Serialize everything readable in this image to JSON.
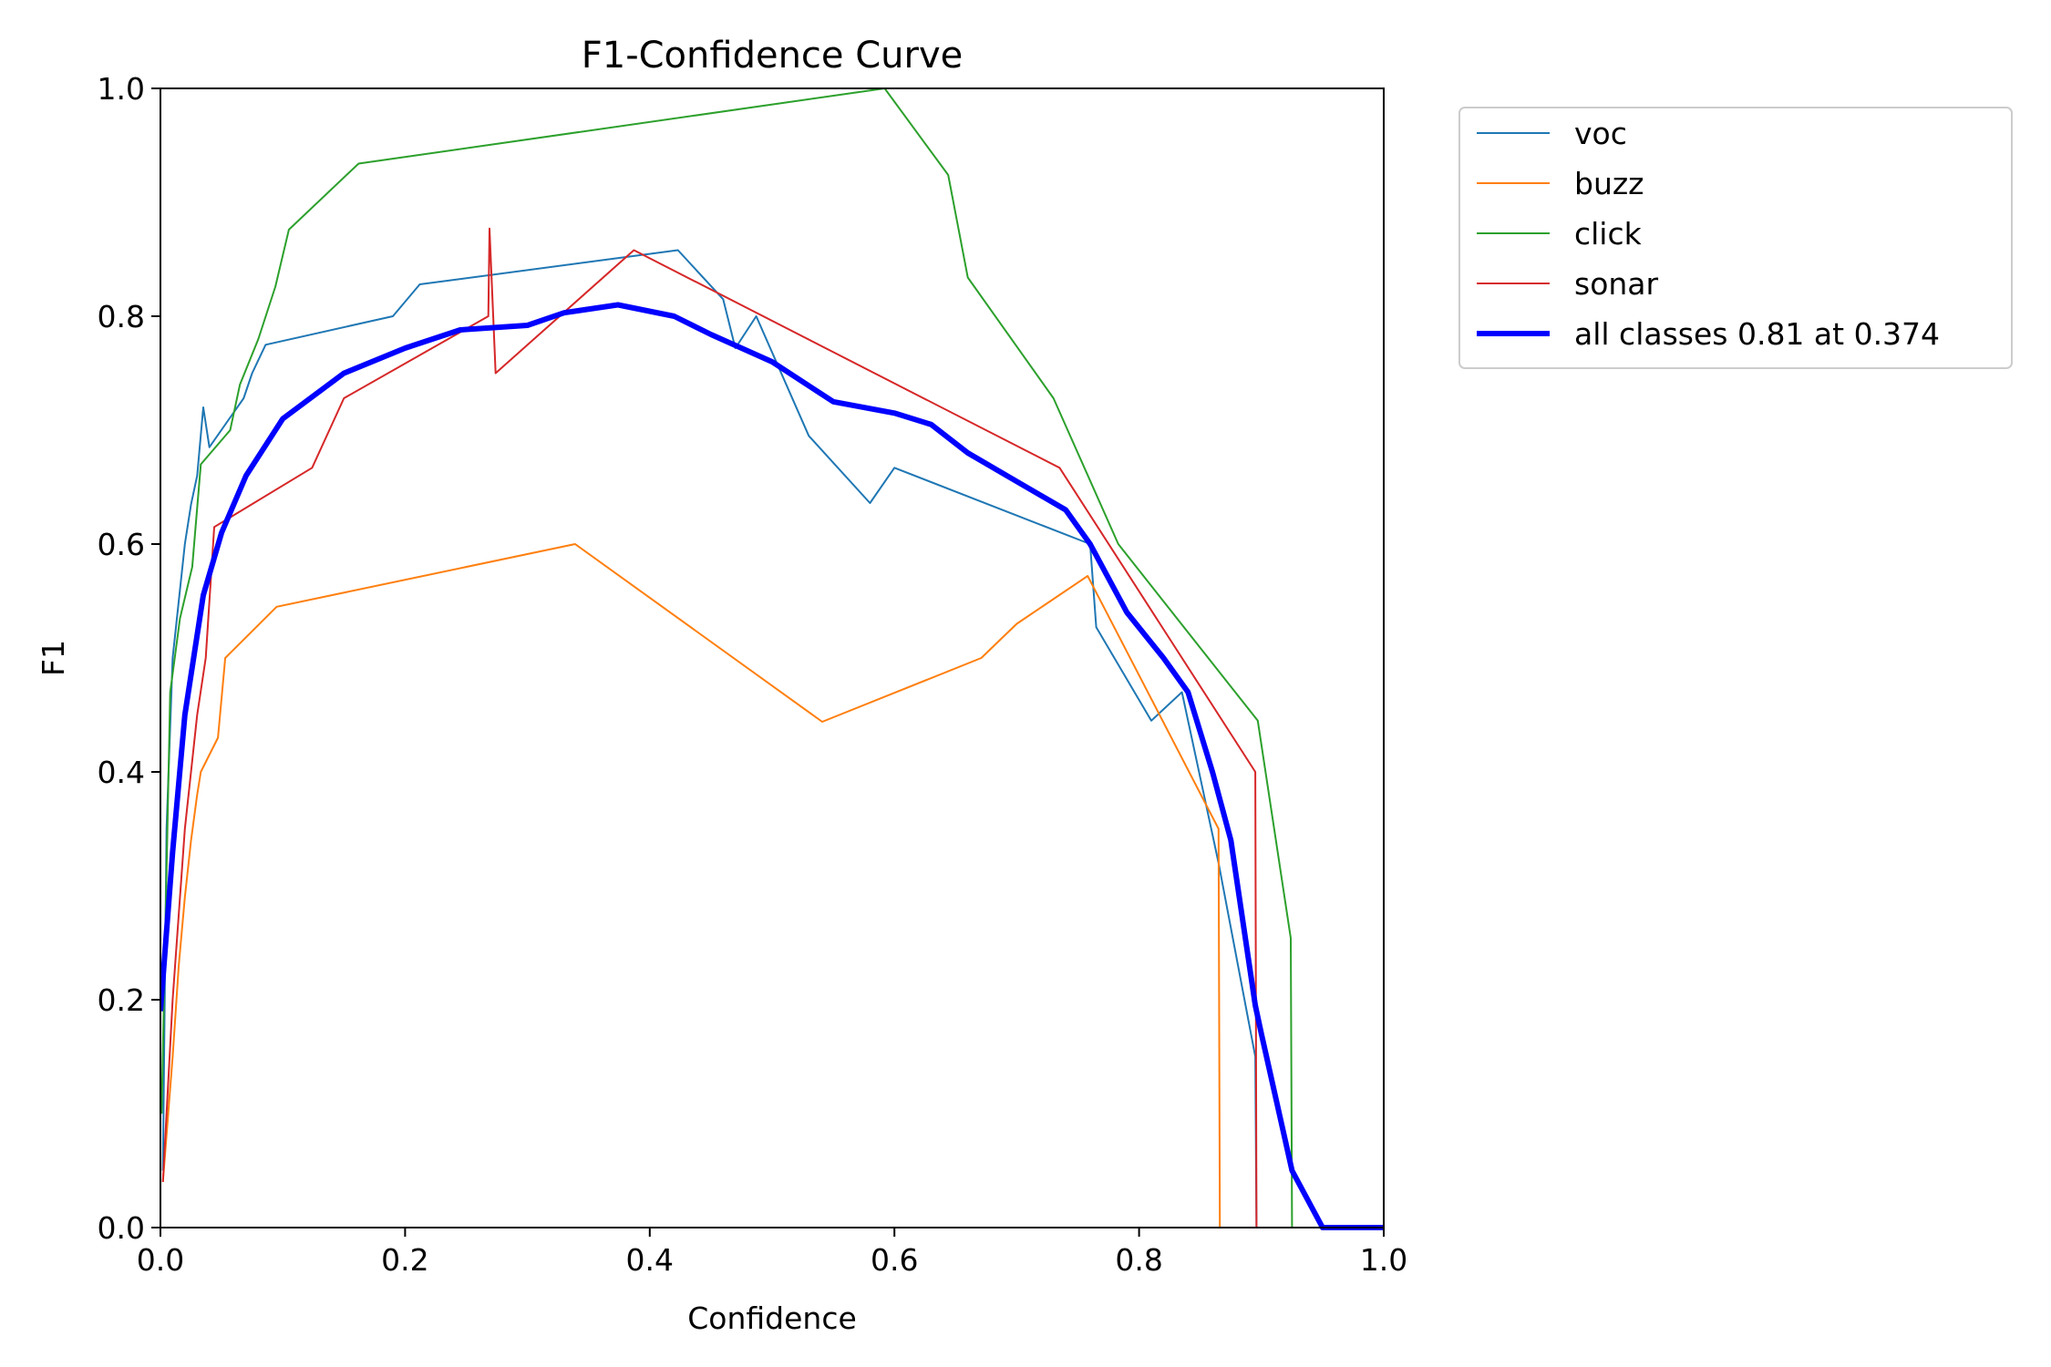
{
  "chart_data": {
    "type": "line",
    "title": "F1-Confidence Curve",
    "xlabel": "Confidence",
    "ylabel": "F1",
    "xlim": [
      0,
      1
    ],
    "ylim": [
      0,
      1
    ],
    "grid": false,
    "legend_position": "outside-top-right",
    "xticks": [
      "0.0",
      "0.2",
      "0.4",
      "0.6",
      "0.8",
      "1.0"
    ],
    "yticks": [
      "0.0",
      "0.2",
      "0.4",
      "0.6",
      "0.8",
      "1.0"
    ],
    "series": [
      {
        "name": "voc",
        "color": "#1f77b4",
        "width": 2,
        "points": [
          [
            0.002,
            0.05
          ],
          [
            0.005,
            0.35
          ],
          [
            0.01,
            0.5
          ],
          [
            0.015,
            0.55
          ],
          [
            0.02,
            0.6
          ],
          [
            0.025,
            0.635
          ],
          [
            0.03,
            0.66
          ],
          [
            0.035,
            0.72
          ],
          [
            0.04,
            0.685
          ],
          [
            0.068,
            0.728
          ],
          [
            0.075,
            0.75
          ],
          [
            0.086,
            0.775
          ],
          [
            0.19,
            0.8
          ],
          [
            0.212,
            0.828
          ],
          [
            0.423,
            0.858
          ],
          [
            0.46,
            0.815
          ],
          [
            0.47,
            0.772
          ],
          [
            0.487,
            0.8
          ],
          [
            0.53,
            0.695
          ],
          [
            0.58,
            0.636
          ],
          [
            0.6,
            0.667
          ],
          [
            0.76,
            0.6
          ],
          [
            0.765,
            0.527
          ],
          [
            0.81,
            0.445
          ],
          [
            0.835,
            0.47
          ],
          [
            0.865,
            0.32
          ],
          [
            0.895,
            0.15
          ],
          [
            0.896,
            0.0
          ],
          [
            1.0,
            0.0
          ]
        ]
      },
      {
        "name": "buzz",
        "color": "#ff7f0e",
        "width": 2,
        "points": [
          [
            0.002,
            0.04
          ],
          [
            0.01,
            0.15
          ],
          [
            0.015,
            0.23
          ],
          [
            0.02,
            0.29
          ],
          [
            0.025,
            0.34
          ],
          [
            0.03,
            0.38
          ],
          [
            0.033,
            0.4
          ],
          [
            0.047,
            0.43
          ],
          [
            0.053,
            0.5
          ],
          [
            0.095,
            0.545
          ],
          [
            0.339,
            0.6
          ],
          [
            0.541,
            0.444
          ],
          [
            0.671,
            0.5
          ],
          [
            0.7,
            0.53
          ],
          [
            0.758,
            0.572
          ],
          [
            0.865,
            0.35
          ],
          [
            0.866,
            0.0
          ],
          [
            1.0,
            0.0
          ]
        ]
      },
      {
        "name": "click",
        "color": "#2ca02c",
        "width": 2,
        "points": [
          [
            0.001,
            0.1
          ],
          [
            0.008,
            0.47
          ],
          [
            0.016,
            0.535
          ],
          [
            0.026,
            0.58
          ],
          [
            0.033,
            0.67
          ],
          [
            0.057,
            0.7
          ],
          [
            0.065,
            0.74
          ],
          [
            0.08,
            0.78
          ],
          [
            0.094,
            0.826
          ],
          [
            0.105,
            0.876
          ],
          [
            0.162,
            0.934
          ],
          [
            0.592,
            1.0
          ],
          [
            0.644,
            0.924
          ],
          [
            0.66,
            0.834
          ],
          [
            0.73,
            0.728
          ],
          [
            0.783,
            0.6
          ],
          [
            0.897,
            0.445
          ],
          [
            0.924,
            0.254
          ],
          [
            0.925,
            0.0
          ],
          [
            1.0,
            0.0
          ]
        ]
      },
      {
        "name": "sonar",
        "color": "#d62728",
        "width": 2,
        "points": [
          [
            0.002,
            0.04
          ],
          [
            0.01,
            0.2
          ],
          [
            0.02,
            0.35
          ],
          [
            0.03,
            0.45
          ],
          [
            0.037,
            0.5
          ],
          [
            0.044,
            0.615
          ],
          [
            0.124,
            0.667
          ],
          [
            0.15,
            0.728
          ],
          [
            0.268,
            0.8
          ],
          [
            0.269,
            0.877
          ],
          [
            0.274,
            0.75
          ],
          [
            0.387,
            0.858
          ],
          [
            0.735,
            0.667
          ],
          [
            0.895,
            0.4
          ],
          [
            0.896,
            0.0
          ],
          [
            1.0,
            0.0
          ]
        ]
      },
      {
        "name": "all classes 0.81 at 0.374",
        "color": "#0000ff",
        "width": 6,
        "points": [
          [
            0.0,
            0.19
          ],
          [
            0.01,
            0.33
          ],
          [
            0.02,
            0.45
          ],
          [
            0.035,
            0.555
          ],
          [
            0.05,
            0.61
          ],
          [
            0.07,
            0.66
          ],
          [
            0.1,
            0.71
          ],
          [
            0.15,
            0.75
          ],
          [
            0.2,
            0.772
          ],
          [
            0.245,
            0.788
          ],
          [
            0.3,
            0.792
          ],
          [
            0.33,
            0.803
          ],
          [
            0.374,
            0.81
          ],
          [
            0.42,
            0.8
          ],
          [
            0.45,
            0.784
          ],
          [
            0.5,
            0.76
          ],
          [
            0.55,
            0.725
          ],
          [
            0.6,
            0.715
          ],
          [
            0.63,
            0.705
          ],
          [
            0.66,
            0.68
          ],
          [
            0.7,
            0.655
          ],
          [
            0.74,
            0.63
          ],
          [
            0.76,
            0.6
          ],
          [
            0.79,
            0.54
          ],
          [
            0.82,
            0.5
          ],
          [
            0.84,
            0.47
          ],
          [
            0.86,
            0.4
          ],
          [
            0.875,
            0.34
          ],
          [
            0.895,
            0.195
          ],
          [
            0.9,
            0.17
          ],
          [
            0.925,
            0.05
          ],
          [
            0.95,
            0.0
          ],
          [
            1.0,
            0.0
          ]
        ]
      }
    ]
  }
}
